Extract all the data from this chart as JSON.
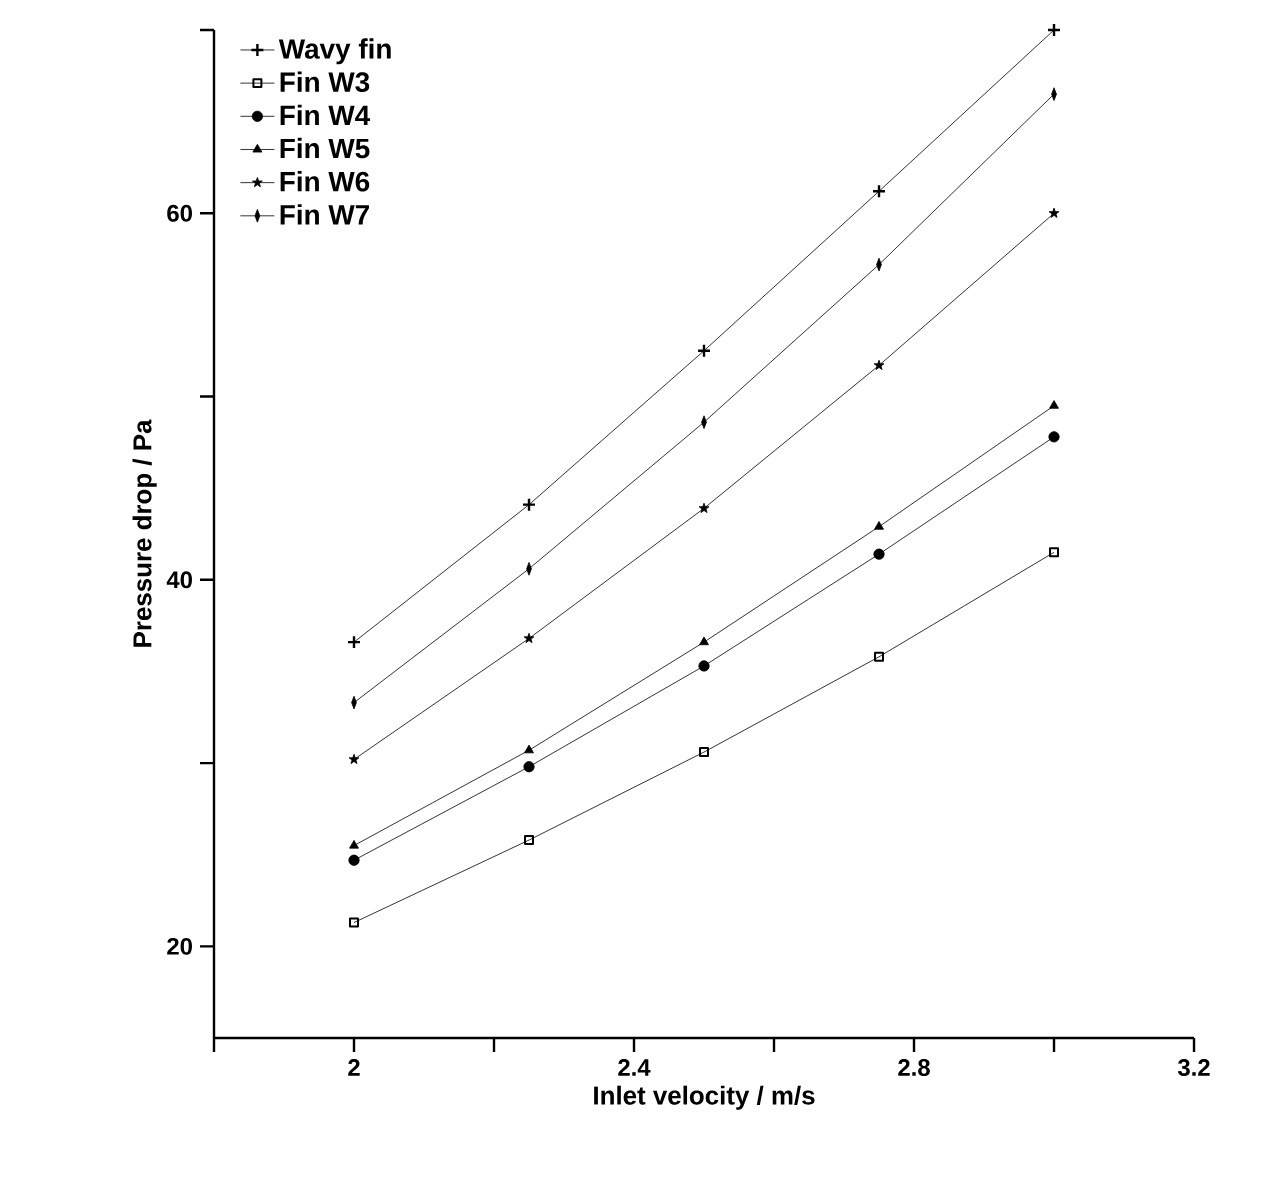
{
  "chart_data": {
    "type": "line",
    "xlabel": "Inlet velocity  / m/s",
    "ylabel": "Pressure drop  / Pa",
    "x": [
      2,
      2.25,
      2.5,
      2.75,
      3
    ],
    "series": [
      {
        "name": "Wavy fin",
        "color": "#000000",
        "marker": "cross",
        "values": [
          36.6,
          44.1,
          52.5,
          61.2,
          70.0
        ]
      },
      {
        "name": "Fin W3",
        "color": "#000000",
        "marker": "square",
        "values": [
          21.3,
          25.8,
          30.6,
          35.8,
          41.5
        ]
      },
      {
        "name": "Fin W4",
        "color": "#000000",
        "marker": "circle",
        "values": [
          24.7,
          29.8,
          35.3,
          41.4,
          47.8
        ]
      },
      {
        "name": "Fin W5",
        "color": "#000000",
        "marker": "triangle",
        "values": [
          25.5,
          30.7,
          36.6,
          42.9,
          49.5
        ]
      },
      {
        "name": "Fin W6",
        "color": "#000000",
        "marker": "star",
        "values": [
          30.2,
          36.8,
          43.9,
          51.7,
          60.0
        ]
      },
      {
        "name": "Fin W7",
        "color": "#000000",
        "marker": "diamond",
        "values": [
          33.3,
          40.6,
          48.6,
          57.2,
          66.5
        ]
      }
    ],
    "xlim": [
      1.8,
      3.2
    ],
    "xticks": [
      {
        "value": 1.8,
        "label": null
      },
      2,
      {
        "value": 2.2,
        "label": null
      },
      2.4,
      {
        "value": 2.6,
        "label": null
      },
      2.8,
      {
        "value": 3.0,
        "label": null
      },
      3.2
    ],
    "ylim": [
      15,
      70
    ],
    "yticks": [
      20,
      {
        "value": 30,
        "label": null
      },
      40,
      {
        "value": 50,
        "label": null
      },
      60,
      {
        "value": 70,
        "label": null
      }
    ],
    "grid": false,
    "legend": "top left",
    "line_style": "solid"
  }
}
